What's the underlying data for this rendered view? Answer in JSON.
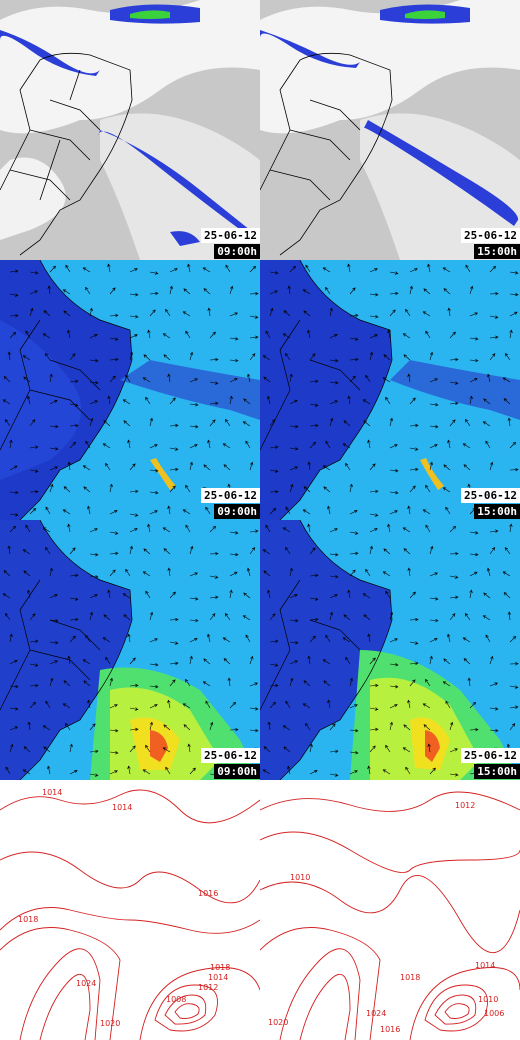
{
  "rows": [
    {
      "id": "satellite",
      "panels": [
        {
          "date": "25-06-12",
          "time": "09:00h"
        },
        {
          "date": "25-06-12",
          "time": "15:00h"
        }
      ]
    },
    {
      "id": "wind-low",
      "panels": [
        {
          "date": "25-06-12",
          "time": "09:00h"
        },
        {
          "date": "25-06-12",
          "time": "15:00h"
        }
      ]
    },
    {
      "id": "wind-high",
      "panels": [
        {
          "date": "25-06-12",
          "time": "09:00h"
        },
        {
          "date": "25-06-12",
          "time": "15:00h"
        }
      ]
    },
    {
      "id": "pressure",
      "panels": [
        {
          "labels": [
            "1014",
            "1014",
            "1016",
            "1018",
            "1018",
            "1024",
            "1020",
            "1014",
            "1012",
            "1008"
          ]
        },
        {
          "labels": [
            "1012",
            "1010",
            "1020",
            "1024",
            "1016",
            "1018",
            "1014",
            "1010",
            "1006"
          ]
        }
      ]
    }
  ],
  "colors": {
    "satellite_cloud": "#2b3fd8",
    "wind_dark": "#1e3ac8",
    "wind_light": "#28c8f0",
    "contour": "#d42020"
  }
}
